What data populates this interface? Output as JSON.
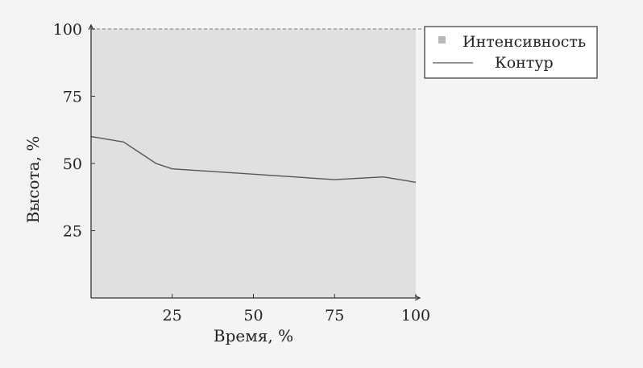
{
  "chart_data": {
    "type": "area",
    "xlabel": "Время, %",
    "ylabel": "Высота, %",
    "xlim": [
      0,
      100
    ],
    "ylim": [
      0,
      100
    ],
    "x_ticks": [
      25,
      50,
      75,
      100
    ],
    "y_ticks": [
      25,
      50,
      75,
      100
    ],
    "grid": false,
    "legend_position": "outside-top-right",
    "series": [
      {
        "name": "Интенсивность",
        "kind": "area",
        "color": "#b9b9b9",
        "x": [
          0,
          100
        ],
        "y": [
          100,
          100
        ]
      },
      {
        "name": "Контур",
        "kind": "line",
        "color": "#555555",
        "x": [
          0,
          10,
          20,
          25,
          50,
          75,
          90,
          100
        ],
        "y": [
          60,
          58,
          50,
          48,
          46,
          44,
          45,
          43
        ]
      }
    ]
  },
  "colors": {
    "background": "#f4f4f2",
    "axis": "#333333",
    "fill": "#b9b9b9",
    "line": "#555555"
  }
}
